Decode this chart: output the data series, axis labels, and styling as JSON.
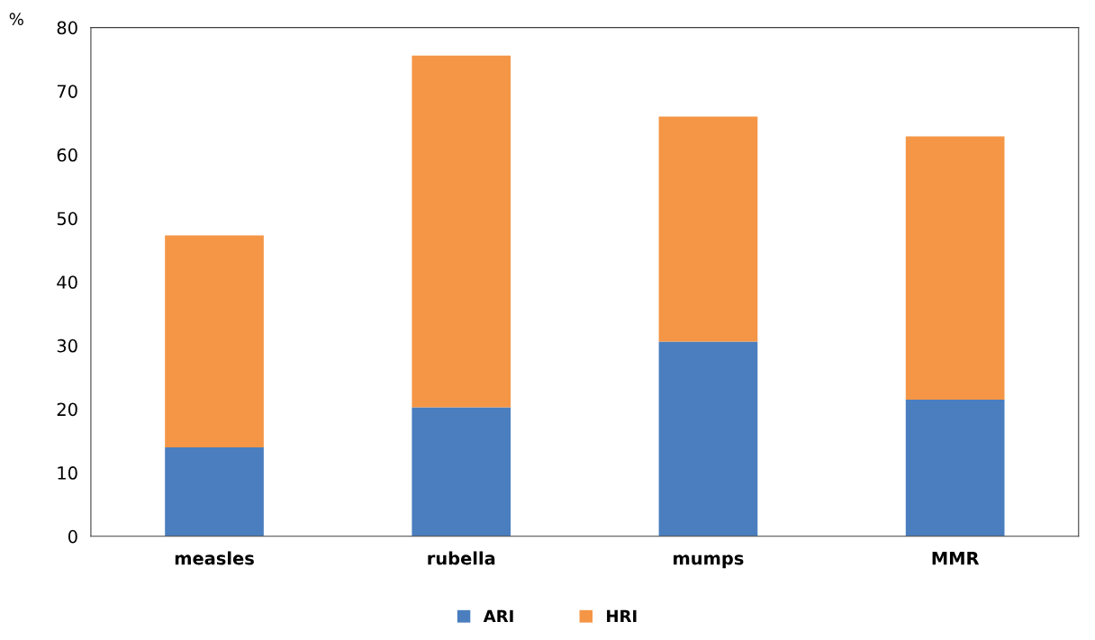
{
  "chart_data": {
    "type": "bar",
    "stacked": true,
    "ylabel": "%",
    "categories": [
      "measles",
      "rubella",
      "mumps",
      "MMR"
    ],
    "series": [
      {
        "name": "ARI",
        "color": "#4a7ebf",
        "values": [
          14.0,
          20.3,
          30.6,
          21.5
        ]
      },
      {
        "name": "HRI",
        "color": "#f59646",
        "values": [
          33.3,
          55.3,
          35.4,
          41.4
        ]
      }
    ],
    "ylim": [
      0,
      80
    ],
    "yticks": [
      0,
      10,
      20,
      30,
      40,
      50,
      60,
      70,
      80
    ],
    "grid": false,
    "legend": "bottom"
  }
}
